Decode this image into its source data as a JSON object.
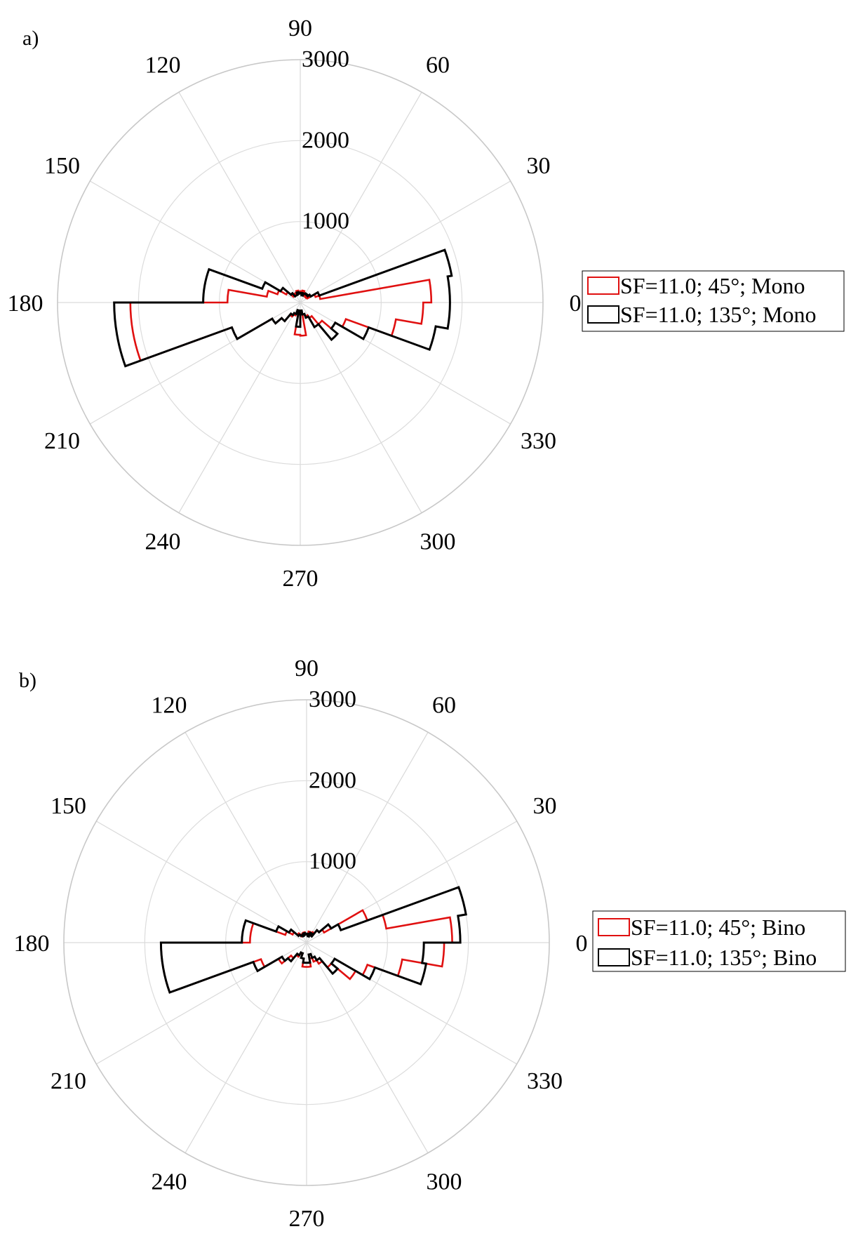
{
  "chart_data": [
    {
      "type": "polar-histogram",
      "panel_label": "a)",
      "angle_ticks": [
        "0",
        "30",
        "60",
        "90",
        "120",
        "150",
        "180",
        "210",
        "240",
        "270",
        "300",
        "330"
      ],
      "radial_ticks": [
        "1000",
        "2000",
        "3000"
      ],
      "rlim": [
        0,
        3000
      ],
      "bin_width_deg": 10,
      "legend_placement": "right",
      "series": [
        {
          "name": "SF=11.0; 45°; Mono",
          "color": "#e01010",
          "bins": [
            {
              "start": -10,
              "value": 1520
            },
            {
              "start": 0,
              "value": 1620
            },
            {
              "start": 10,
              "value": 250
            },
            {
              "start": 20,
              "value": 200
            },
            {
              "start": 30,
              "value": 100
            },
            {
              "start": 40,
              "value": 90
            },
            {
              "start": 50,
              "value": 100
            },
            {
              "start": 60,
              "value": 120
            },
            {
              "start": 70,
              "value": 150
            },
            {
              "start": 80,
              "value": 140
            },
            {
              "start": 90,
              "value": 120
            },
            {
              "start": 100,
              "value": 150
            },
            {
              "start": 110,
              "value": 130
            },
            {
              "start": 120,
              "value": 120
            },
            {
              "start": 130,
              "value": 110
            },
            {
              "start": 140,
              "value": 200
            },
            {
              "start": 150,
              "value": 300
            },
            {
              "start": 160,
              "value": 420
            },
            {
              "start": 170,
              "value": 900
            },
            {
              "start": 180,
              "value": 2100
            },
            {
              "start": 190,
              "value": 2100
            },
            {
              "start": 200,
              "value": 900
            },
            {
              "start": 210,
              "value": 400
            },
            {
              "start": 220,
              "value": 300
            },
            {
              "start": 230,
              "value": 200
            },
            {
              "start": 240,
              "value": 170
            },
            {
              "start": 250,
              "value": 130
            },
            {
              "start": 260,
              "value": 400
            },
            {
              "start": 270,
              "value": 410
            },
            {
              "start": 280,
              "value": 150
            },
            {
              "start": 290,
              "value": 180
            },
            {
              "start": 300,
              "value": 220
            },
            {
              "start": 310,
              "value": 350
            },
            {
              "start": 320,
              "value": 500
            },
            {
              "start": 330,
              "value": 600
            },
            {
              "start": 340,
              "value": 1200
            }
          ]
        },
        {
          "name": "SF=11.0; 135°; Mono",
          "color": "#000000",
          "bins": [
            {
              "start": -10,
              "value": 1850
            },
            {
              "start": 0,
              "value": 1850
            },
            {
              "start": 10,
              "value": 1900
            },
            {
              "start": 20,
              "value": 250
            },
            {
              "start": 30,
              "value": 150
            },
            {
              "start": 40,
              "value": 120
            },
            {
              "start": 50,
              "value": 130
            },
            {
              "start": 60,
              "value": 120
            },
            {
              "start": 70,
              "value": 90
            },
            {
              "start": 80,
              "value": 120
            },
            {
              "start": 90,
              "value": 110
            },
            {
              "start": 100,
              "value": 130
            },
            {
              "start": 110,
              "value": 100
            },
            {
              "start": 120,
              "value": 100
            },
            {
              "start": 130,
              "value": 150
            },
            {
              "start": 140,
              "value": 280
            },
            {
              "start": 150,
              "value": 500
            },
            {
              "start": 160,
              "value": 1200
            },
            {
              "start": 170,
              "value": 1200
            },
            {
              "start": 180,
              "value": 2300
            },
            {
              "start": 190,
              "value": 2300
            },
            {
              "start": 200,
              "value": 900
            },
            {
              "start": 210,
              "value": 400
            },
            {
              "start": 220,
              "value": 300
            },
            {
              "start": 230,
              "value": 180
            },
            {
              "start": 240,
              "value": 150
            },
            {
              "start": 250,
              "value": 100
            },
            {
              "start": 260,
              "value": 300
            },
            {
              "start": 270,
              "value": 100
            },
            {
              "start": 280,
              "value": 150
            },
            {
              "start": 290,
              "value": 200
            },
            {
              "start": 300,
              "value": 350
            },
            {
              "start": 310,
              "value": 600
            },
            {
              "start": 320,
              "value": 500
            },
            {
              "start": 330,
              "value": 900
            },
            {
              "start": 340,
              "value": 1700
            }
          ]
        }
      ]
    },
    {
      "type": "polar-histogram",
      "panel_label": "b)",
      "angle_ticks": [
        "0",
        "30",
        "60",
        "90",
        "120",
        "150",
        "180",
        "210",
        "240",
        "270",
        "300",
        "330"
      ],
      "radial_ticks": [
        "1000",
        "2000",
        "3000"
      ],
      "rlim": [
        0,
        3000
      ],
      "bin_width_deg": 10,
      "legend_placement": "right",
      "series": [
        {
          "name": "SF=11.0; 45°; Bino",
          "color": "#e01010",
          "bins": [
            {
              "start": -10,
              "value": 1700
            },
            {
              "start": 0,
              "value": 1800
            },
            {
              "start": 10,
              "value": 1000
            },
            {
              "start": 20,
              "value": 800
            },
            {
              "start": 30,
              "value": 250
            },
            {
              "start": 40,
              "value": 200
            },
            {
              "start": 50,
              "value": 150
            },
            {
              "start": 60,
              "value": 120
            },
            {
              "start": 70,
              "value": 140
            },
            {
              "start": 80,
              "value": 100
            },
            {
              "start": 90,
              "value": 110
            },
            {
              "start": 100,
              "value": 130
            },
            {
              "start": 110,
              "value": 120
            },
            {
              "start": 120,
              "value": 100
            },
            {
              "start": 130,
              "value": 150
            },
            {
              "start": 140,
              "value": 200
            },
            {
              "start": 150,
              "value": 280
            },
            {
              "start": 160,
              "value": 700
            },
            {
              "start": 170,
              "value": 700
            },
            {
              "start": 180,
              "value": 1800
            },
            {
              "start": 190,
              "value": 1800
            },
            {
              "start": 200,
              "value": 600
            },
            {
              "start": 210,
              "value": 400
            },
            {
              "start": 220,
              "value": 250
            },
            {
              "start": 230,
              "value": 200
            },
            {
              "start": 240,
              "value": 150
            },
            {
              "start": 250,
              "value": 200
            },
            {
              "start": 260,
              "value": 300
            },
            {
              "start": 270,
              "value": 300
            },
            {
              "start": 280,
              "value": 200
            },
            {
              "start": 290,
              "value": 250
            },
            {
              "start": 300,
              "value": 300
            },
            {
              "start": 310,
              "value": 400
            },
            {
              "start": 320,
              "value": 700
            },
            {
              "start": 330,
              "value": 800
            },
            {
              "start": 340,
              "value": 1200
            }
          ]
        },
        {
          "name": "SF=11.0; 135°; Bino",
          "color": "#000000",
          "bins": [
            {
              "start": -10,
              "value": 1450
            },
            {
              "start": 0,
              "value": 1900
            },
            {
              "start": 10,
              "value": 2000
            },
            {
              "start": 20,
              "value": 450
            },
            {
              "start": 30,
              "value": 350
            },
            {
              "start": 40,
              "value": 200
            },
            {
              "start": 50,
              "value": 100
            },
            {
              "start": 60,
              "value": 130
            },
            {
              "start": 70,
              "value": 80
            },
            {
              "start": 80,
              "value": 110
            },
            {
              "start": 90,
              "value": 100
            },
            {
              "start": 100,
              "value": 120
            },
            {
              "start": 110,
              "value": 90
            },
            {
              "start": 120,
              "value": 110
            },
            {
              "start": 130,
              "value": 130
            },
            {
              "start": 140,
              "value": 250
            },
            {
              "start": 150,
              "value": 400
            },
            {
              "start": 160,
              "value": 800
            },
            {
              "start": 170,
              "value": 800
            },
            {
              "start": 180,
              "value": 1800
            },
            {
              "start": 190,
              "value": 1800
            },
            {
              "start": 200,
              "value": 700
            },
            {
              "start": 210,
              "value": 350
            },
            {
              "start": 220,
              "value": 300
            },
            {
              "start": 230,
              "value": 180
            },
            {
              "start": 240,
              "value": 140
            },
            {
              "start": 250,
              "value": 200
            },
            {
              "start": 260,
              "value": 250
            },
            {
              "start": 270,
              "value": 250
            },
            {
              "start": 280,
              "value": 150
            },
            {
              "start": 290,
              "value": 200
            },
            {
              "start": 300,
              "value": 250
            },
            {
              "start": 310,
              "value": 500
            },
            {
              "start": 320,
              "value": 400
            },
            {
              "start": 330,
              "value": 900
            },
            {
              "start": 340,
              "value": 1500
            }
          ]
        }
      ]
    }
  ]
}
